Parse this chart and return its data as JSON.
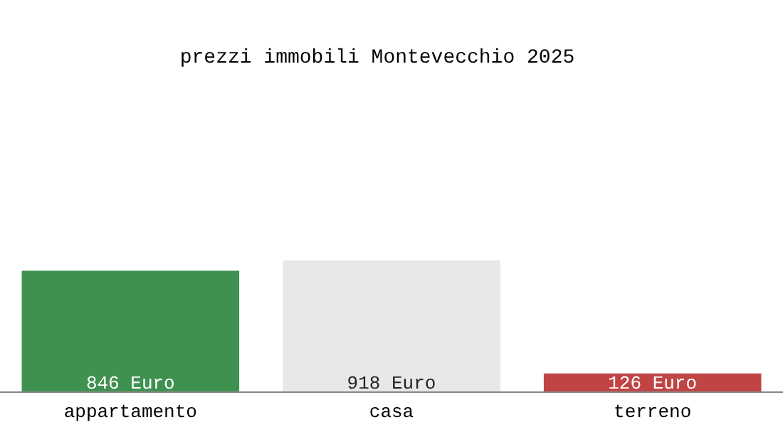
{
  "chart_data": {
    "type": "bar",
    "title": "prezzi immobili Montevecchio 2025",
    "categories": [
      "appartamento",
      "casa",
      "terreno"
    ],
    "values": [
      846,
      918,
      126
    ],
    "colors": [
      "#3f9150",
      "#e8e8e8",
      "#c04444"
    ],
    "value_labels": [
      "846 Euro",
      "918 Euro",
      "126 Euro"
    ]
  }
}
